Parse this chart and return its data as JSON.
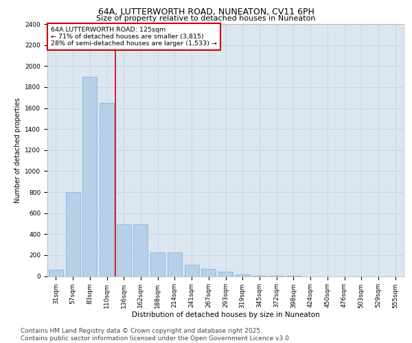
{
  "title_line1": "64A, LUTTERWORTH ROAD, NUNEATON, CV11 6PH",
  "title_line2": "Size of property relative to detached houses in Nuneaton",
  "xlabel": "Distribution of detached houses by size in Nuneaton",
  "ylabel": "Number of detached properties",
  "categories": [
    "31sqm",
    "57sqm",
    "83sqm",
    "110sqm",
    "136sqm",
    "162sqm",
    "188sqm",
    "214sqm",
    "241sqm",
    "267sqm",
    "293sqm",
    "319sqm",
    "345sqm",
    "372sqm",
    "398sqm",
    "424sqm",
    "450sqm",
    "476sqm",
    "503sqm",
    "529sqm",
    "555sqm"
  ],
  "values": [
    60,
    800,
    1900,
    1650,
    490,
    490,
    225,
    225,
    105,
    70,
    40,
    15,
    5,
    2,
    1,
    0,
    0,
    0,
    0,
    0,
    0
  ],
  "bar_color": "#b8cfe8",
  "bar_edge_color": "#7bafd4",
  "annotation_text": "64A LUTTERWORTH ROAD: 125sqm\n← 71% of detached houses are smaller (3,815)\n28% of semi-detached houses are larger (1,533) →",
  "annotation_box_color": "#ffffff",
  "annotation_box_edge_color": "#cc0000",
  "vline_x": 3.5,
  "vline_color": "#cc0000",
  "ylim": [
    0,
    2400
  ],
  "yticks": [
    0,
    200,
    400,
    600,
    800,
    1000,
    1200,
    1400,
    1600,
    1800,
    2000,
    2200,
    2400
  ],
  "grid_color": "#c8d4e4",
  "plot_bg_color": "#dce6f1",
  "footer": "Contains HM Land Registry data © Crown copyright and database right 2025.\nContains public sector information licensed under the Open Government Licence v3.0.",
  "footer_fontsize": 6.5,
  "title1_fontsize": 9,
  "title2_fontsize": 8,
  "xlabel_fontsize": 7.5,
  "ylabel_fontsize": 7,
  "tick_fontsize": 6.5,
  "annot_fontsize": 6.8
}
